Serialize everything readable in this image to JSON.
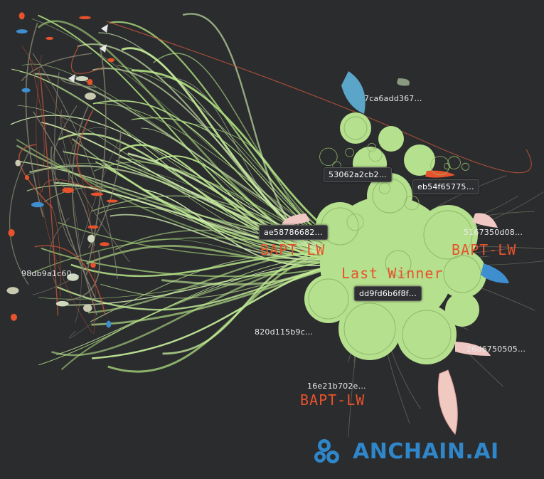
{
  "node_labels": [
    {
      "id": "n1",
      "text": "7ca6add367…",
      "style": "plain"
    },
    {
      "id": "n2",
      "text": "53062a2cb2…",
      "style": "boxed"
    },
    {
      "id": "n3",
      "text": "eb54f65775…",
      "style": "boxed"
    },
    {
      "id": "n4",
      "text": "ae58786682…",
      "style": "boxed"
    },
    {
      "id": "n5",
      "text": "5167350d08…",
      "style": "plain"
    },
    {
      "id": "n6",
      "text": "98db9a1c60…",
      "style": "plain"
    },
    {
      "id": "n7",
      "text": "dd9fd6b6f8f…",
      "style": "boxed"
    },
    {
      "id": "n8",
      "text": "820d115b9c…",
      "style": "plain"
    },
    {
      "id": "n9",
      "text": "26d6750505…",
      "style": "plain"
    },
    {
      "id": "n10",
      "text": "16e21b702e…",
      "style": "plain"
    }
  ],
  "annotations": {
    "bapt_1": "BAPT-LW",
    "bapt_2": "BAPT-LW",
    "bapt_3": "BAPT-LW",
    "last_winner": "Last Winner"
  },
  "brand": {
    "name": "ANCHAIN.AI",
    "icon": "anchain-logo-icon",
    "color": "#2f86c9"
  },
  "colors": {
    "background": "#2b2c2e",
    "edge_primary": "#b8e68a",
    "cluster_fill": "#b5e08e",
    "accent_red": "#e8522c",
    "accent_blue": "#3e8ed0"
  }
}
